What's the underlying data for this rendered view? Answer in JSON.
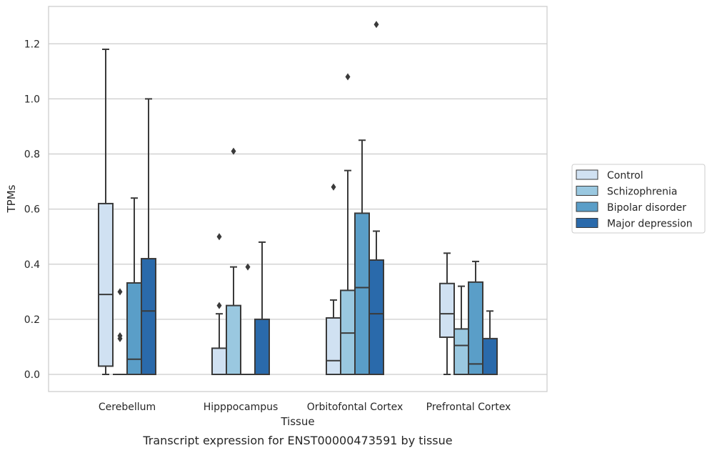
{
  "chart_data": {
    "type": "box",
    "caption": "Transcript expression for ENST00000473591 by tissue",
    "xlabel": "Tissue",
    "ylabel": "TPMs",
    "ylim": [
      -0.06,
      1.34
    ],
    "yticks": [
      0.0,
      0.2,
      0.4,
      0.6,
      0.8,
      1.0,
      1.2
    ],
    "ytick_labels": [
      "0.0",
      "0.2",
      "0.4",
      "0.6",
      "0.8",
      "1.0",
      "1.2"
    ],
    "grid": "horizontal",
    "legend_position": "right",
    "categories": [
      "Cerebellum",
      "Hipppocampus",
      "Orbitofontal Cortex",
      "Prefrontal Cortex"
    ],
    "series": [
      {
        "name": "Control",
        "color": "#d0e1f2",
        "boxes": [
          {
            "whislo": 0.0,
            "q1": 0.03,
            "med": 0.29,
            "q3": 0.62,
            "whishi": 1.18,
            "fliers": []
          },
          {
            "whislo": 0.0,
            "q1": 0.0,
            "med": 0.0,
            "q3": 0.095,
            "whishi": 0.22,
            "fliers": [
              0.25,
              0.5
            ]
          },
          {
            "whislo": 0.0,
            "q1": 0.0,
            "med": 0.05,
            "q3": 0.205,
            "whishi": 0.27,
            "fliers": [
              0.68
            ]
          },
          {
            "whislo": 0.0,
            "q1": 0.135,
            "med": 0.22,
            "q3": 0.33,
            "whishi": 0.44,
            "fliers": []
          }
        ]
      },
      {
        "name": "Schizophrenia",
        "color": "#9ac8e0",
        "boxes": [
          {
            "whislo": 0.0,
            "q1": 0.0,
            "med": 0.0,
            "q3": 0.0,
            "whishi": 0.0,
            "fliers": [
              0.13,
              0.14,
              0.3
            ]
          },
          {
            "whislo": 0.0,
            "q1": 0.0,
            "med": 0.0,
            "q3": 0.25,
            "whishi": 0.39,
            "fliers": [
              0.81
            ]
          },
          {
            "whislo": 0.0,
            "q1": 0.0,
            "med": 0.15,
            "q3": 0.305,
            "whishi": 0.74,
            "fliers": [
              1.08
            ]
          },
          {
            "whislo": 0.0,
            "q1": 0.0,
            "med": 0.105,
            "q3": 0.165,
            "whishi": 0.32,
            "fliers": []
          }
        ]
      },
      {
        "name": "Bipolar disorder",
        "color": "#5a9ec8",
        "boxes": [
          {
            "whislo": 0.0,
            "q1": 0.0,
            "med": 0.055,
            "q3": 0.332,
            "whishi": 0.64,
            "fliers": []
          },
          {
            "whislo": 0.0,
            "q1": 0.0,
            "med": 0.0,
            "q3": 0.0,
            "whishi": 0.0,
            "fliers": [
              0.39
            ]
          },
          {
            "whislo": 0.0,
            "q1": 0.0,
            "med": 0.315,
            "q3": 0.585,
            "whishi": 0.85,
            "fliers": []
          },
          {
            "whislo": 0.0,
            "q1": 0.0,
            "med": 0.038,
            "q3": 0.335,
            "whishi": 0.41,
            "fliers": []
          }
        ]
      },
      {
        "name": "Major depression",
        "color": "#2a6aab",
        "boxes": [
          {
            "whislo": 0.0,
            "q1": 0.0,
            "med": 0.23,
            "q3": 0.42,
            "whishi": 1.0,
            "fliers": []
          },
          {
            "whislo": 0.0,
            "q1": 0.0,
            "med": 0.0,
            "q3": 0.2,
            "whishi": 0.48,
            "fliers": []
          },
          {
            "whislo": 0.0,
            "q1": 0.0,
            "med": 0.22,
            "q3": 0.415,
            "whishi": 0.52,
            "fliers": [
              1.27
            ]
          },
          {
            "whislo": 0.0,
            "q1": 0.0,
            "med": 0.0,
            "q3": 0.13,
            "whishi": 0.23,
            "fliers": []
          }
        ]
      }
    ]
  }
}
